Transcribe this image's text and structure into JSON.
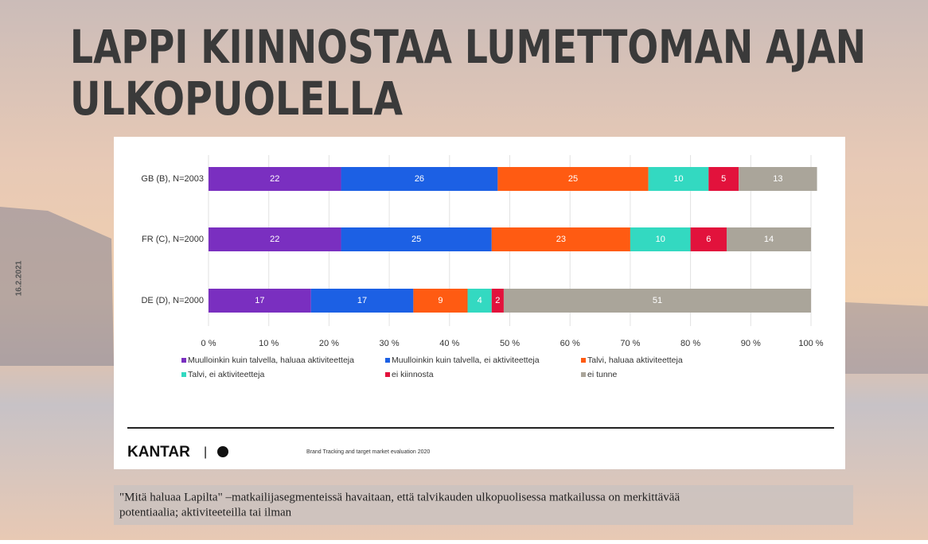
{
  "slide": {
    "title_lines": [
      "LAPPI KIINNOSTAA LUMETTOMAN AJAN",
      "ULKOPUOLELLA"
    ],
    "date": "16.2.2021",
    "brand": "KANTAR",
    "source": "Brand Tracking and target market evaluation 2020",
    "caption_lines": [
      "\"Mitä haluaa Lapilta\" –matkailijasegmenteissä havaitaan, että talvikauden ulkopuolisessa matkailussa on merkittävää",
      "potentiaalia; aktiviteeteilla tai ilman"
    ]
  },
  "chart_data": {
    "type": "stacked-bar-horizontal",
    "categories": [
      "GB (B), N=2003",
      "FR (C), N=2000",
      "DE (D), N=2000"
    ],
    "series": [
      {
        "name": "Muulloinkin kuin talvella, haluaa aktiviteetteja",
        "color": "#7a2fc0",
        "values": [
          22,
          22,
          17
        ]
      },
      {
        "name": "Muulloinkin kuin talvella, ei aktiviteetteja",
        "color": "#1c60e4",
        "values": [
          26,
          25,
          17
        ]
      },
      {
        "name": "Talvi, haluaa aktiviteetteja",
        "color": "#ff5b12",
        "values": [
          25,
          23,
          9
        ]
      },
      {
        "name": "Talvi, ei aktiviteetteja",
        "color": "#33d9c1",
        "values": [
          10,
          10,
          4
        ]
      },
      {
        "name": "ei kiinnosta",
        "color": "#e2123c",
        "values": [
          5,
          6,
          2
        ]
      },
      {
        "name": "ei tunne",
        "color": "#aaa59a",
        "values": [
          13,
          14,
          51
        ]
      }
    ],
    "xlim": [
      0,
      100
    ],
    "xticks": [
      {
        "value": 0,
        "label": "0 %"
      },
      {
        "value": 10,
        "label": "10 %"
      },
      {
        "value": 20,
        "label": "20 %"
      },
      {
        "value": 30,
        "label": "30 %"
      },
      {
        "value": 40,
        "label": "40 %"
      },
      {
        "value": 50,
        "label": "50 %"
      },
      {
        "value": 60,
        "label": "60 %"
      },
      {
        "value": 70,
        "label": "70 %"
      },
      {
        "value": 80,
        "label": "80 %"
      },
      {
        "value": 90,
        "label": "90 %"
      },
      {
        "value": 100,
        "label": "100 %"
      }
    ],
    "grid": true,
    "legend": "bottom"
  }
}
